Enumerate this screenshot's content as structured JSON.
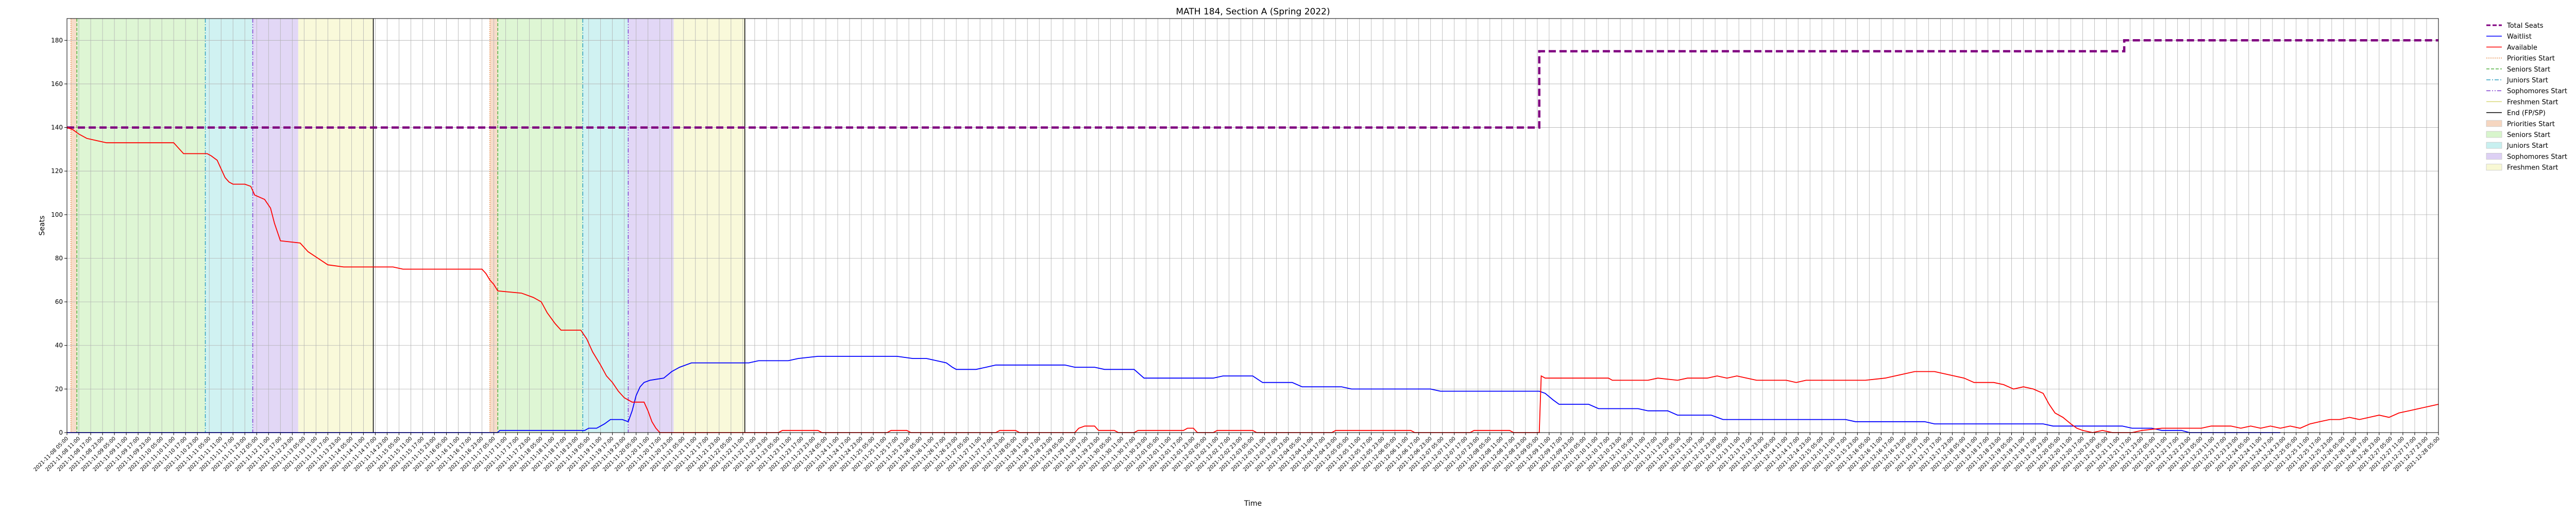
{
  "chart_data": {
    "type": "line",
    "title": "MATH 184, Section A (Spring 2022)",
    "xlabel": "Time",
    "ylabel": "Seats",
    "ylim": [
      0,
      190
    ],
    "x_range_hours": [
      0,
      1200
    ],
    "y_ticks": [
      0,
      20,
      40,
      60,
      80,
      100,
      120,
      140,
      160,
      180
    ],
    "grid": true,
    "legend_position": "outside-right",
    "x_tick_labels": {
      "first": "2021-11-08 05:00",
      "step_hours": 6,
      "count": 201,
      "start_date": "2021-11-08",
      "start_hour": 5
    },
    "shaded_regions": [
      {
        "name": "Priorities Start",
        "start": 2,
        "end": 5,
        "color": "#f6d6c0"
      },
      {
        "name": "Seniors Start",
        "start": 5,
        "end": 70,
        "color": "#d8f5cc"
      },
      {
        "name": "Juniors Start",
        "start": 70,
        "end": 94,
        "color": "#c8f0f0"
      },
      {
        "name": "Sophomores Start",
        "start": 94,
        "end": 117,
        "color": "#ddd0f4"
      },
      {
        "name": "Freshmen Start",
        "start": 117,
        "end": 155,
        "color": "#f8f8d4"
      },
      {
        "name": "Priorities Start",
        "start": 214,
        "end": 218,
        "color": "#f6d6c0"
      },
      {
        "name": "Seniors Start",
        "start": 218,
        "end": 261,
        "color": "#d8f5cc"
      },
      {
        "name": "Juniors Start",
        "start": 261,
        "end": 284,
        "color": "#c8f0f0"
      },
      {
        "name": "Sophomores Start",
        "start": 284,
        "end": 307,
        "color": "#ddd0f4"
      },
      {
        "name": "Freshmen Start",
        "start": 307,
        "end": 343,
        "color": "#f8f8d4"
      }
    ],
    "vertical_lines": [
      {
        "name": "Priorities Start",
        "x": 2,
        "color": "#e69050",
        "dash": "2,2"
      },
      {
        "name": "Seniors Start",
        "x": 5,
        "color": "#50b040",
        "dash": "6,3"
      },
      {
        "name": "Juniors Start",
        "x": 70,
        "color": "#30a0c0",
        "dash": "8,3,2,3"
      },
      {
        "name": "Sophomores Start",
        "x": 94,
        "color": "#8040d0",
        "dash": "8,3,2,3,2,3"
      },
      {
        "name": "End (FP/SP)",
        "x": 155,
        "color": "#000000",
        "dash": ""
      },
      {
        "name": "Priorities Start",
        "x": 214,
        "color": "#e69050",
        "dash": "2,2"
      },
      {
        "name": "Seniors Start",
        "x": 218,
        "color": "#50b040",
        "dash": "6,3"
      },
      {
        "name": "Juniors Start",
        "x": 261,
        "color": "#30a0c0",
        "dash": "8,3,2,3"
      },
      {
        "name": "Sophomores Start",
        "x": 284,
        "color": "#8040d0",
        "dash": "8,3,2,3,2,3"
      },
      {
        "name": "End (FP/SP)",
        "x": 343,
        "color": "#000000",
        "dash": ""
      }
    ],
    "series": [
      {
        "name": "Total Seats",
        "color": "#800080",
        "style": "dashed",
        "points": [
          [
            0,
            140
          ],
          [
            745,
            140
          ],
          [
            745,
            175
          ],
          [
            1041,
            175
          ],
          [
            1041,
            180
          ],
          [
            1200,
            180
          ]
        ]
      },
      {
        "name": "Waitlist",
        "color": "#0000ff",
        "style": "solid",
        "points": [
          [
            0,
            0
          ],
          [
            218,
            0
          ],
          [
            219,
            1
          ],
          [
            262,
            1
          ],
          [
            264,
            2
          ],
          [
            268,
            2
          ],
          [
            270,
            3
          ],
          [
            272,
            4
          ],
          [
            275,
            6
          ],
          [
            281,
            6
          ],
          [
            284,
            5
          ],
          [
            286,
            10
          ],
          [
            288,
            17
          ],
          [
            290,
            21
          ],
          [
            292,
            23
          ],
          [
            295,
            24
          ],
          [
            302,
            25
          ],
          [
            306,
            28
          ],
          [
            310,
            30
          ],
          [
            316,
            32
          ],
          [
            345,
            32
          ],
          [
            350,
            33
          ],
          [
            365,
            33
          ],
          [
            370,
            34
          ],
          [
            380,
            35
          ],
          [
            420,
            35
          ],
          [
            428,
            34
          ],
          [
            435,
            34
          ],
          [
            440,
            33
          ],
          [
            445,
            32
          ],
          [
            448,
            30
          ],
          [
            450,
            29
          ],
          [
            460,
            29
          ],
          [
            465,
            30
          ],
          [
            470,
            31
          ],
          [
            505,
            31
          ],
          [
            510,
            30
          ],
          [
            520,
            30
          ],
          [
            525,
            29
          ],
          [
            540,
            29
          ],
          [
            545,
            25
          ],
          [
            580,
            25
          ],
          [
            585,
            26
          ],
          [
            600,
            26
          ],
          [
            605,
            23
          ],
          [
            620,
            23
          ],
          [
            625,
            21
          ],
          [
            645,
            21
          ],
          [
            650,
            20
          ],
          [
            690,
            20
          ],
          [
            695,
            19
          ],
          [
            745,
            19
          ],
          [
            748,
            18
          ],
          [
            752,
            15
          ],
          [
            755,
            13
          ],
          [
            770,
            13
          ],
          [
            775,
            11
          ],
          [
            795,
            11
          ],
          [
            800,
            10
          ],
          [
            810,
            10
          ],
          [
            815,
            8
          ],
          [
            832,
            8
          ],
          [
            835,
            7
          ],
          [
            838,
            6
          ],
          [
            855,
            6
          ],
          [
            860,
            6
          ],
          [
            900,
            6
          ],
          [
            905,
            5
          ],
          [
            940,
            5
          ],
          [
            945,
            4
          ],
          [
            1000,
            4
          ],
          [
            1005,
            3
          ],
          [
            1040,
            3
          ],
          [
            1045,
            2
          ],
          [
            1055,
            2
          ],
          [
            1060,
            1
          ],
          [
            1070,
            1
          ],
          [
            1074,
            0
          ],
          [
            1120,
            0
          ]
        ]
      },
      {
        "name": "Available",
        "color": "#ff0000",
        "style": "solid",
        "points": [
          [
            0,
            140
          ],
          [
            3,
            139
          ],
          [
            6,
            137
          ],
          [
            10,
            135
          ],
          [
            15,
            134
          ],
          [
            20,
            133
          ],
          [
            54,
            133
          ],
          [
            56,
            131
          ],
          [
            59,
            128
          ],
          [
            71,
            128
          ],
          [
            73,
            127
          ],
          [
            76,
            125
          ],
          [
            78,
            121
          ],
          [
            80,
            117
          ],
          [
            82,
            115
          ],
          [
            84,
            114
          ],
          [
            90,
            114
          ],
          [
            93,
            113
          ],
          [
            95,
            109
          ],
          [
            100,
            107
          ],
          [
            103,
            103
          ],
          [
            105,
            96
          ],
          [
            108,
            88
          ],
          [
            118,
            87
          ],
          [
            122,
            83
          ],
          [
            127,
            80
          ],
          [
            132,
            77
          ],
          [
            140,
            76
          ],
          [
            165,
            76
          ],
          [
            170,
            75
          ],
          [
            210,
            75
          ],
          [
            212,
            73
          ],
          [
            214,
            70
          ],
          [
            216,
            68
          ],
          [
            218,
            65
          ],
          [
            230,
            64
          ],
          [
            236,
            62
          ],
          [
            240,
            60
          ],
          [
            243,
            55
          ],
          [
            247,
            50
          ],
          [
            250,
            47
          ],
          [
            260,
            47
          ],
          [
            263,
            43
          ],
          [
            266,
            37
          ],
          [
            270,
            31
          ],
          [
            273,
            26
          ],
          [
            276,
            23
          ],
          [
            279,
            19
          ],
          [
            282,
            16
          ],
          [
            286,
            14
          ],
          [
            292,
            14
          ],
          [
            294,
            10
          ],
          [
            296,
            5
          ],
          [
            298,
            2
          ],
          [
            300,
            0
          ],
          [
            340,
            0
          ],
          [
            360,
            0
          ],
          [
            362,
            1
          ],
          [
            380,
            1
          ],
          [
            382,
            0
          ],
          [
            415,
            0
          ],
          [
            417,
            1
          ],
          [
            425,
            1
          ],
          [
            427,
            0
          ],
          [
            470,
            0
          ],
          [
            472,
            1
          ],
          [
            480,
            1
          ],
          [
            482,
            0
          ],
          [
            510,
            0
          ],
          [
            512,
            2
          ],
          [
            515,
            3
          ],
          [
            520,
            3
          ],
          [
            522,
            1
          ],
          [
            530,
            1
          ],
          [
            532,
            0
          ],
          [
            540,
            0
          ],
          [
            542,
            1
          ],
          [
            565,
            1
          ],
          [
            567,
            2
          ],
          [
            570,
            2
          ],
          [
            572,
            0
          ],
          [
            580,
            0
          ],
          [
            582,
            1
          ],
          [
            600,
            1
          ],
          [
            602,
            0
          ],
          [
            640,
            0
          ],
          [
            642,
            1
          ],
          [
            680,
            1
          ],
          [
            682,
            0
          ],
          [
            710,
            0
          ],
          [
            712,
            1
          ],
          [
            730,
            1
          ],
          [
            732,
            0
          ],
          [
            745,
            0
          ],
          [
            746,
            26
          ],
          [
            748,
            25
          ],
          [
            780,
            25
          ],
          [
            782,
            24
          ],
          [
            800,
            24
          ],
          [
            805,
            25
          ],
          [
            815,
            24
          ],
          [
            820,
            25
          ],
          [
            830,
            25
          ],
          [
            835,
            26
          ],
          [
            840,
            25
          ],
          [
            845,
            26
          ],
          [
            850,
            25
          ],
          [
            855,
            24
          ],
          [
            870,
            24
          ],
          [
            875,
            23
          ],
          [
            880,
            24
          ],
          [
            910,
            24
          ],
          [
            920,
            25
          ],
          [
            925,
            26
          ],
          [
            930,
            27
          ],
          [
            935,
            28
          ],
          [
            945,
            28
          ],
          [
            950,
            27
          ],
          [
            955,
            26
          ],
          [
            960,
            25
          ],
          [
            965,
            23
          ],
          [
            975,
            23
          ],
          [
            980,
            22
          ],
          [
            985,
            20
          ],
          [
            990,
            21
          ],
          [
            995,
            20
          ],
          [
            1000,
            18
          ],
          [
            1003,
            13
          ],
          [
            1006,
            9
          ],
          [
            1010,
            7
          ],
          [
            1014,
            4
          ],
          [
            1017,
            2
          ],
          [
            1020,
            1
          ],
          [
            1025,
            0
          ],
          [
            1030,
            1
          ],
          [
            1035,
            0
          ],
          [
            1045,
            0
          ],
          [
            1050,
            1
          ],
          [
            1060,
            2
          ],
          [
            1080,
            2
          ],
          [
            1085,
            3
          ],
          [
            1095,
            3
          ],
          [
            1100,
            2
          ],
          [
            1105,
            3
          ],
          [
            1110,
            2
          ],
          [
            1115,
            3
          ],
          [
            1120,
            2
          ],
          [
            1125,
            3
          ],
          [
            1130,
            2
          ],
          [
            1135,
            4
          ],
          [
            1140,
            5
          ],
          [
            1145,
            6
          ],
          [
            1150,
            6
          ],
          [
            1155,
            7
          ],
          [
            1160,
            6
          ],
          [
            1165,
            7
          ],
          [
            1170,
            8
          ],
          [
            1175,
            7
          ],
          [
            1180,
            9
          ],
          [
            1185,
            10
          ],
          [
            1190,
            11
          ],
          [
            1195,
            12
          ],
          [
            1200,
            13
          ]
        ]
      }
    ],
    "legend": [
      {
        "label": "Total Seats",
        "kind": "line",
        "color": "#800080",
        "dash": "8,4",
        "width": 3
      },
      {
        "label": "Waitlist",
        "kind": "line",
        "color": "#0000ff",
        "dash": "",
        "width": 1.5
      },
      {
        "label": "Available",
        "kind": "line",
        "color": "#ff0000",
        "dash": "",
        "width": 1.5
      },
      {
        "label": "Priorities Start",
        "kind": "line",
        "color": "#e69050",
        "dash": "2,2",
        "width": 1.5
      },
      {
        "label": "Seniors Start",
        "kind": "line",
        "color": "#50b040",
        "dash": "6,3",
        "width": 1.5
      },
      {
        "label": "Juniors Start",
        "kind": "line",
        "color": "#30a0c0",
        "dash": "8,3,2,3",
        "width": 1.5
      },
      {
        "label": "Sophomores Start",
        "kind": "line",
        "color": "#8040d0",
        "dash": "8,3,2,3,2,3",
        "width": 1.5
      },
      {
        "label": "Freshmen Start",
        "kind": "line",
        "color": "#d8d878",
        "dash": "",
        "width": 1.5
      },
      {
        "label": "End (FP/SP)",
        "kind": "line",
        "color": "#000000",
        "dash": "",
        "width": 1.5
      },
      {
        "label": "Priorities Start",
        "kind": "patch",
        "color": "#f6d6c0"
      },
      {
        "label": "Seniors Start",
        "kind": "patch",
        "color": "#d8f5cc"
      },
      {
        "label": "Juniors Start",
        "kind": "patch",
        "color": "#c8f0f0"
      },
      {
        "label": "Sophomores Start",
        "kind": "patch",
        "color": "#ddd0f4"
      },
      {
        "label": "Freshmen Start",
        "kind": "patch",
        "color": "#f8f8d4"
      }
    ]
  }
}
